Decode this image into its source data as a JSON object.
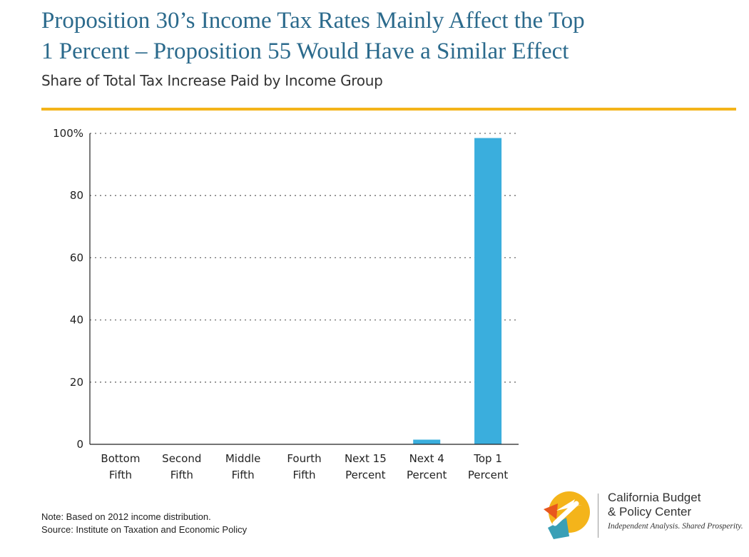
{
  "header": {
    "title_line1": "Proposition 30’s Income Tax Rates Mainly Affect the Top",
    "title_line2": "1 Percent – Proposition 55 Would Have a Similar Effect",
    "subtitle": "Share of Total Tax Increase Paid by Income Group"
  },
  "colors": {
    "accent_rule": "#f4b41a",
    "bar": "#3aaedd",
    "title": "#2b6a8c"
  },
  "chart_data": {
    "type": "bar",
    "title": "Share of Total Tax Increase Paid by Income Group",
    "categories": [
      [
        "Bottom",
        "Fifth"
      ],
      [
        "Second",
        "Fifth"
      ],
      [
        "Middle",
        "Fifth"
      ],
      [
        "Fourth",
        "Fifth"
      ],
      [
        "Next 15",
        "Percent"
      ],
      [
        "Next 4",
        "Percent"
      ],
      [
        "Top 1",
        "Percent"
      ]
    ],
    "values": [
      0,
      0,
      0,
      0,
      0,
      1.5,
      98.5
    ],
    "ylim": [
      0,
      100
    ],
    "yticks": [
      0,
      20,
      40,
      60,
      80,
      100
    ],
    "ytick_labels": [
      "0",
      "20",
      "40",
      "60",
      "80",
      "100%"
    ],
    "grid": true,
    "grid_style": "dotted",
    "legend": "none"
  },
  "footer": {
    "note": "Note: Based on 2012 income distribution.",
    "source": "Source: Institute on Taxation and Economic Policy"
  },
  "logo": {
    "name_line1": "California Budget",
    "name_line2": "& Policy Center",
    "tagline": "Independent Analysis. Shared Prosperity."
  }
}
